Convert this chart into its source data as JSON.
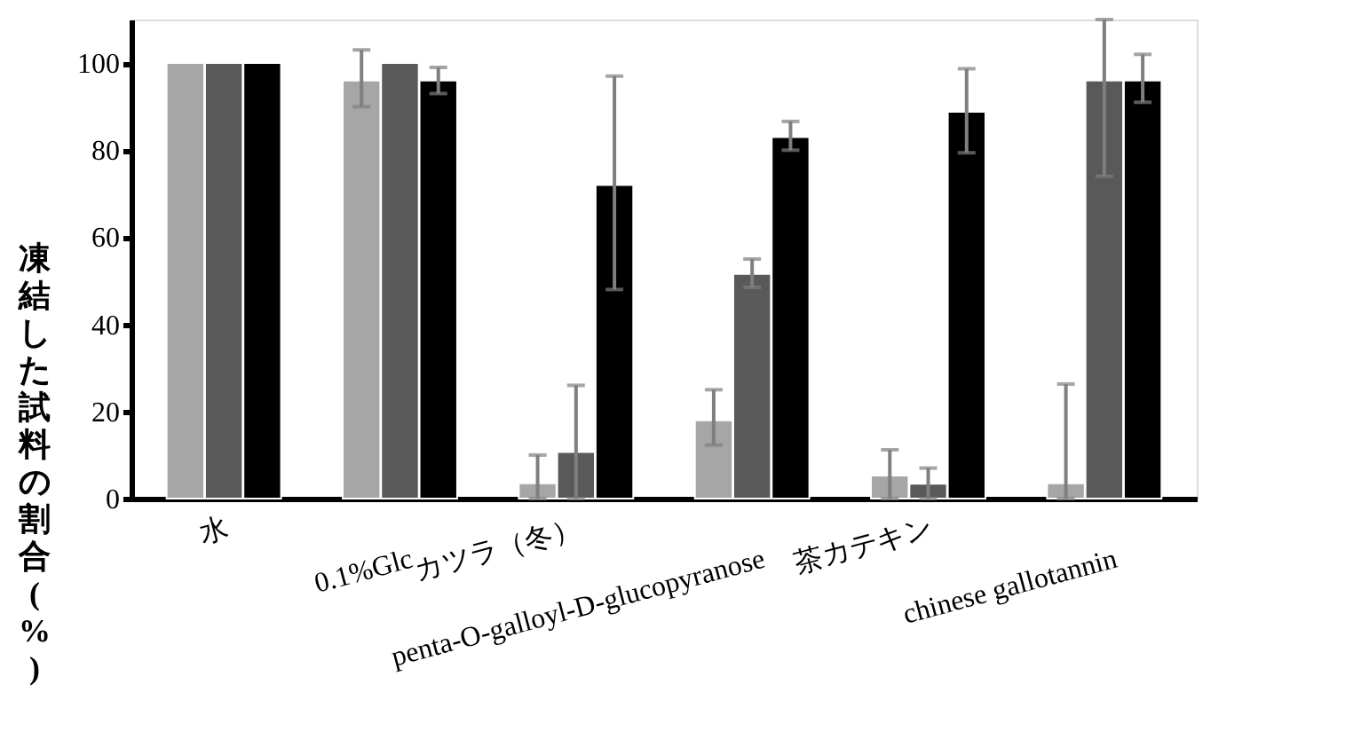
{
  "chart_data": {
    "type": "bar",
    "ylabel": "凍結した試料の割合(%)",
    "categories": [
      "水",
      "0.1%Glc",
      "カツラ（冬）",
      "penta-O-galloyl-D-glucopyranose",
      "茶カテキン",
      "chinese gallotannin"
    ],
    "series": [
      {
        "color": "#a6a6a6",
        "values": [
          100,
          96,
          3.5,
          18,
          5.3,
          3.5
        ],
        "errors": [
          null,
          [
            90,
            103
          ],
          [
            0,
            10
          ],
          [
            12.3,
            25
          ],
          [
            0,
            11.2
          ],
          [
            0,
            26.3
          ]
        ]
      },
      {
        "color": "#595959",
        "values": [
          100,
          100,
          10.7,
          51.6,
          3.4,
          96
        ],
        "errors": [
          null,
          null,
          [
            0,
            26
          ],
          [
            48.5,
            55
          ],
          [
            0,
            7
          ],
          [
            74,
            110
          ]
        ]
      },
      {
        "color": "#000000",
        "values": [
          100,
          96,
          72,
          83,
          88.8,
          96
        ],
        "errors": [
          null,
          [
            93,
            99
          ],
          [
            48,
            97
          ],
          [
            80,
            86.6
          ],
          [
            79.4,
            98.7
          ],
          [
            91,
            102
          ]
        ]
      }
    ],
    "ylim": [
      0,
      110
    ],
    "yticks": [
      0,
      20,
      40,
      60,
      80,
      100
    ],
    "grid": false,
    "legend": false
  }
}
